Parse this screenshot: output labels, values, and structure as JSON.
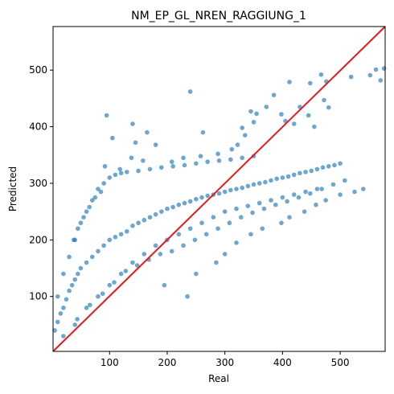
{
  "chart_data": {
    "type": "scatter",
    "title": "NM_EP_GL_NREN_RAGGIUNG_1",
    "xlabel": "Real",
    "ylabel": "Predicted",
    "xlim": [
      2,
      578
    ],
    "ylim": [
      3,
      577
    ],
    "xticks": [
      100,
      200,
      300,
      400,
      500
    ],
    "yticks": [
      100,
      200,
      300,
      400,
      500
    ],
    "grid": false,
    "legend": "none",
    "series": [
      {
        "type": "scatter",
        "color": "#1f77b4",
        "alpha": 0.65,
        "points": [
          [
            5,
            40
          ],
          [
            10,
            55
          ],
          [
            15,
            70
          ],
          [
            20,
            80
          ],
          [
            25,
            95
          ],
          [
            30,
            110
          ],
          [
            35,
            120
          ],
          [
            40,
            130
          ],
          [
            45,
            140
          ],
          [
            50,
            150
          ],
          [
            60,
            160
          ],
          [
            70,
            170
          ],
          [
            80,
            180
          ],
          [
            90,
            190
          ],
          [
            100,
            200
          ],
          [
            110,
            205
          ],
          [
            120,
            210
          ],
          [
            130,
            215
          ],
          [
            140,
            225
          ],
          [
            150,
            230
          ],
          [
            160,
            235
          ],
          [
            170,
            240
          ],
          [
            180,
            245
          ],
          [
            190,
            250
          ],
          [
            200,
            255
          ],
          [
            210,
            258
          ],
          [
            220,
            262
          ],
          [
            230,
            265
          ],
          [
            240,
            268
          ],
          [
            250,
            272
          ],
          [
            260,
            275
          ],
          [
            270,
            278
          ],
          [
            280,
            280
          ],
          [
            290,
            282
          ],
          [
            300,
            285
          ],
          [
            310,
            288
          ],
          [
            320,
            290
          ],
          [
            330,
            292
          ],
          [
            340,
            295
          ],
          [
            350,
            298
          ],
          [
            360,
            300
          ],
          [
            370,
            302
          ],
          [
            380,
            305
          ],
          [
            390,
            308
          ],
          [
            400,
            310
          ],
          [
            410,
            312
          ],
          [
            420,
            315
          ],
          [
            430,
            318
          ],
          [
            440,
            320
          ],
          [
            450,
            322
          ],
          [
            460,
            325
          ],
          [
            470,
            328
          ],
          [
            480,
            330
          ],
          [
            490,
            332
          ],
          [
            500,
            335
          ],
          [
            20,
            30
          ],
          [
            40,
            50
          ],
          [
            60,
            80
          ],
          [
            80,
            100
          ],
          [
            100,
            120
          ],
          [
            120,
            140
          ],
          [
            140,
            160
          ],
          [
            160,
            175
          ],
          [
            180,
            190
          ],
          [
            200,
            200
          ],
          [
            220,
            210
          ],
          [
            240,
            220
          ],
          [
            260,
            230
          ],
          [
            280,
            240
          ],
          [
            300,
            250
          ],
          [
            320,
            255
          ],
          [
            340,
            260
          ],
          [
            360,
            265
          ],
          [
            380,
            270
          ],
          [
            400,
            275
          ],
          [
            420,
            280
          ],
          [
            440,
            285
          ],
          [
            460,
            290
          ],
          [
            10,
            100
          ],
          [
            20,
            140
          ],
          [
            30,
            170
          ],
          [
            40,
            200
          ],
          [
            50,
            230
          ],
          [
            60,
            250
          ],
          [
            70,
            270
          ],
          [
            80,
            290
          ],
          [
            90,
            300
          ],
          [
            100,
            310
          ],
          [
            110,
            315
          ],
          [
            120,
            318
          ],
          [
            130,
            320
          ],
          [
            150,
            322
          ],
          [
            170,
            325
          ],
          [
            190,
            328
          ],
          [
            210,
            330
          ],
          [
            230,
            332
          ],
          [
            250,
            335
          ],
          [
            270,
            338
          ],
          [
            290,
            340
          ],
          [
            310,
            342
          ],
          [
            330,
            345
          ],
          [
            350,
            348
          ],
          [
            95,
            420
          ],
          [
            140,
            405
          ],
          [
            105,
            380
          ],
          [
            145,
            372
          ],
          [
            165,
            390
          ],
          [
            180,
            368
          ],
          [
            240,
            462
          ],
          [
            262,
            390
          ],
          [
            330,
            398
          ],
          [
            335,
            385
          ],
          [
            345,
            427
          ],
          [
            355,
            423
          ],
          [
            350,
            408
          ],
          [
            372,
            435
          ],
          [
            385,
            456
          ],
          [
            412,
            479
          ],
          [
            448,
            477
          ],
          [
            467,
            492
          ],
          [
            472,
            447
          ],
          [
            476,
            480
          ],
          [
            480,
            434
          ],
          [
            519,
            488
          ],
          [
            552,
            491
          ],
          [
            562,
            501
          ],
          [
            570,
            482
          ],
          [
            576,
            503
          ],
          [
            430,
            435
          ],
          [
            445,
            420
          ],
          [
            455,
            400
          ],
          [
            405,
            410
          ],
          [
            398,
            422
          ],
          [
            420,
            405
          ],
          [
            38,
            200
          ],
          [
            45,
            220
          ],
          [
            55,
            240
          ],
          [
            65,
            258
          ],
          [
            75,
            275
          ],
          [
            85,
            285
          ],
          [
            92,
            330
          ],
          [
            118,
            325
          ],
          [
            138,
            345
          ],
          [
            158,
            340
          ],
          [
            208,
            338
          ],
          [
            228,
            345
          ],
          [
            258,
            348
          ],
          [
            288,
            352
          ],
          [
            312,
            360
          ],
          [
            322,
            368
          ],
          [
            44,
            60
          ],
          [
            66,
            85
          ],
          [
            88,
            105
          ],
          [
            108,
            125
          ],
          [
            128,
            145
          ],
          [
            148,
            155
          ],
          [
            168,
            165
          ],
          [
            188,
            175
          ],
          [
            208,
            180
          ],
          [
            228,
            190
          ],
          [
            248,
            200
          ],
          [
            268,
            210
          ],
          [
            288,
            220
          ],
          [
            308,
            230
          ],
          [
            328,
            240
          ],
          [
            348,
            248
          ],
          [
            368,
            255
          ],
          [
            388,
            262
          ],
          [
            408,
            268
          ],
          [
            428,
            275
          ],
          [
            448,
            282
          ],
          [
            468,
            290
          ],
          [
            488,
            298
          ],
          [
            508,
            305
          ],
          [
            235,
            100
          ],
          [
            195,
            120
          ],
          [
            250,
            140
          ],
          [
            285,
            160
          ],
          [
            300,
            175
          ],
          [
            320,
            195
          ],
          [
            345,
            210
          ],
          [
            365,
            220
          ],
          [
            398,
            230
          ],
          [
            412,
            240
          ],
          [
            438,
            250
          ],
          [
            458,
            262
          ],
          [
            475,
            270
          ],
          [
            500,
            280
          ],
          [
            525,
            285
          ],
          [
            540,
            290
          ]
        ]
      }
    ],
    "reference_line": {
      "from": [
        2,
        3
      ],
      "to": [
        578,
        577
      ],
      "color": "#e41a1c"
    }
  }
}
